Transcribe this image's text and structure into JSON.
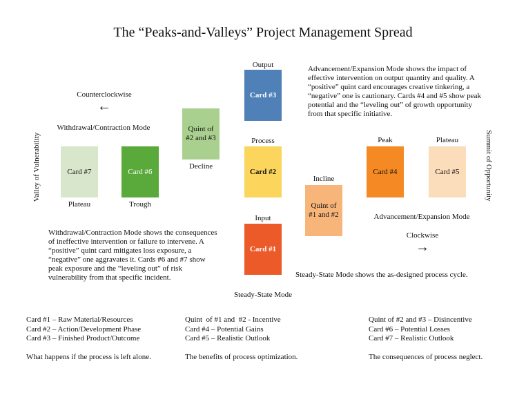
{
  "title": "The “Peaks-and-Valleys” Project Management Spread",
  "colors": {
    "card1": "#ec5a2a",
    "card2": "#fbd55c",
    "card3": "#4f80b7",
    "card4": "#f58a24",
    "card5": "#fbdcbb",
    "card6": "#5aaa3b",
    "card7": "#d8e7cc",
    "quint12": "#f8b57a",
    "quint23": "#a9d08e"
  },
  "labels": {
    "output": "Output",
    "process": "Process",
    "input": "Input",
    "steady_state_mode": "Steady-State Mode",
    "counterclockwise": "Counterclockwise",
    "arrow_left": "←",
    "withdrawal_mode": "Withdrawal/Contraction Mode",
    "decline": "Decline",
    "plateau_left": "Plateau",
    "trough": "Trough",
    "incline": "Incline",
    "peak": "Peak",
    "plateau_right": "Plateau",
    "advancement_mode": "Advancement/Expansion Mode",
    "clockwise": "Clockwise",
    "arrow_right": "→",
    "valley": "Valley of Vulnerability",
    "summit": "Summit of Opportunity"
  },
  "cards": {
    "card1": "Card #1",
    "card2": "Card #2",
    "card3": "Card #3",
    "card4": "Card #4",
    "card5": "Card #5",
    "card6": "Card #6",
    "card7": "Card #7",
    "quint12": "Quint of #1 and #2",
    "quint23": "Quint of #2 and #3"
  },
  "paragraphs": {
    "advancement": "Advancement/Expansion Mode shows the impact of effective intervention on output quantity and quality. A “positive” quint card encourages creative tinkering, a “negative” one is cautionary. Cards #4 and #5 show peak potential and the “leveling out” of growth opportunity from that specific initiative.",
    "withdrawal": "Withdrawal/Contraction Mode shows the consequences of ineffective intervention or failure to intervene. A “positive” quint card mitigates loss exposure, a “negative” one aggravates it. Cards #6 and #7 show peak exposure and the “leveling out” of risk vulnerability from that specific incident.",
    "steady_state": "Steady-State Mode shows the as-designed process cycle."
  },
  "legend": {
    "col1": {
      "lines": [
        "Card #1 – Raw Material/Resources",
        "Card #2 – Action/Development Phase",
        "Card #3 – Finished Product/Outcome"
      ],
      "footer": "What happens if the process is left alone."
    },
    "col2": {
      "lines": [
        "Quint  of #1 and  #2 - Incentive",
        "Card #4 – Potential Gains",
        "Card #5 – Realistic Outlook"
      ],
      "footer": "The benefits of process optimization."
    },
    "col3": {
      "lines": [
        "Quint of #2 and #3 – Disincentive",
        "Card #6 – Potential Losses",
        "Card #7 – Realistic Outlook"
      ],
      "footer": "The consequences of process neglect."
    }
  }
}
